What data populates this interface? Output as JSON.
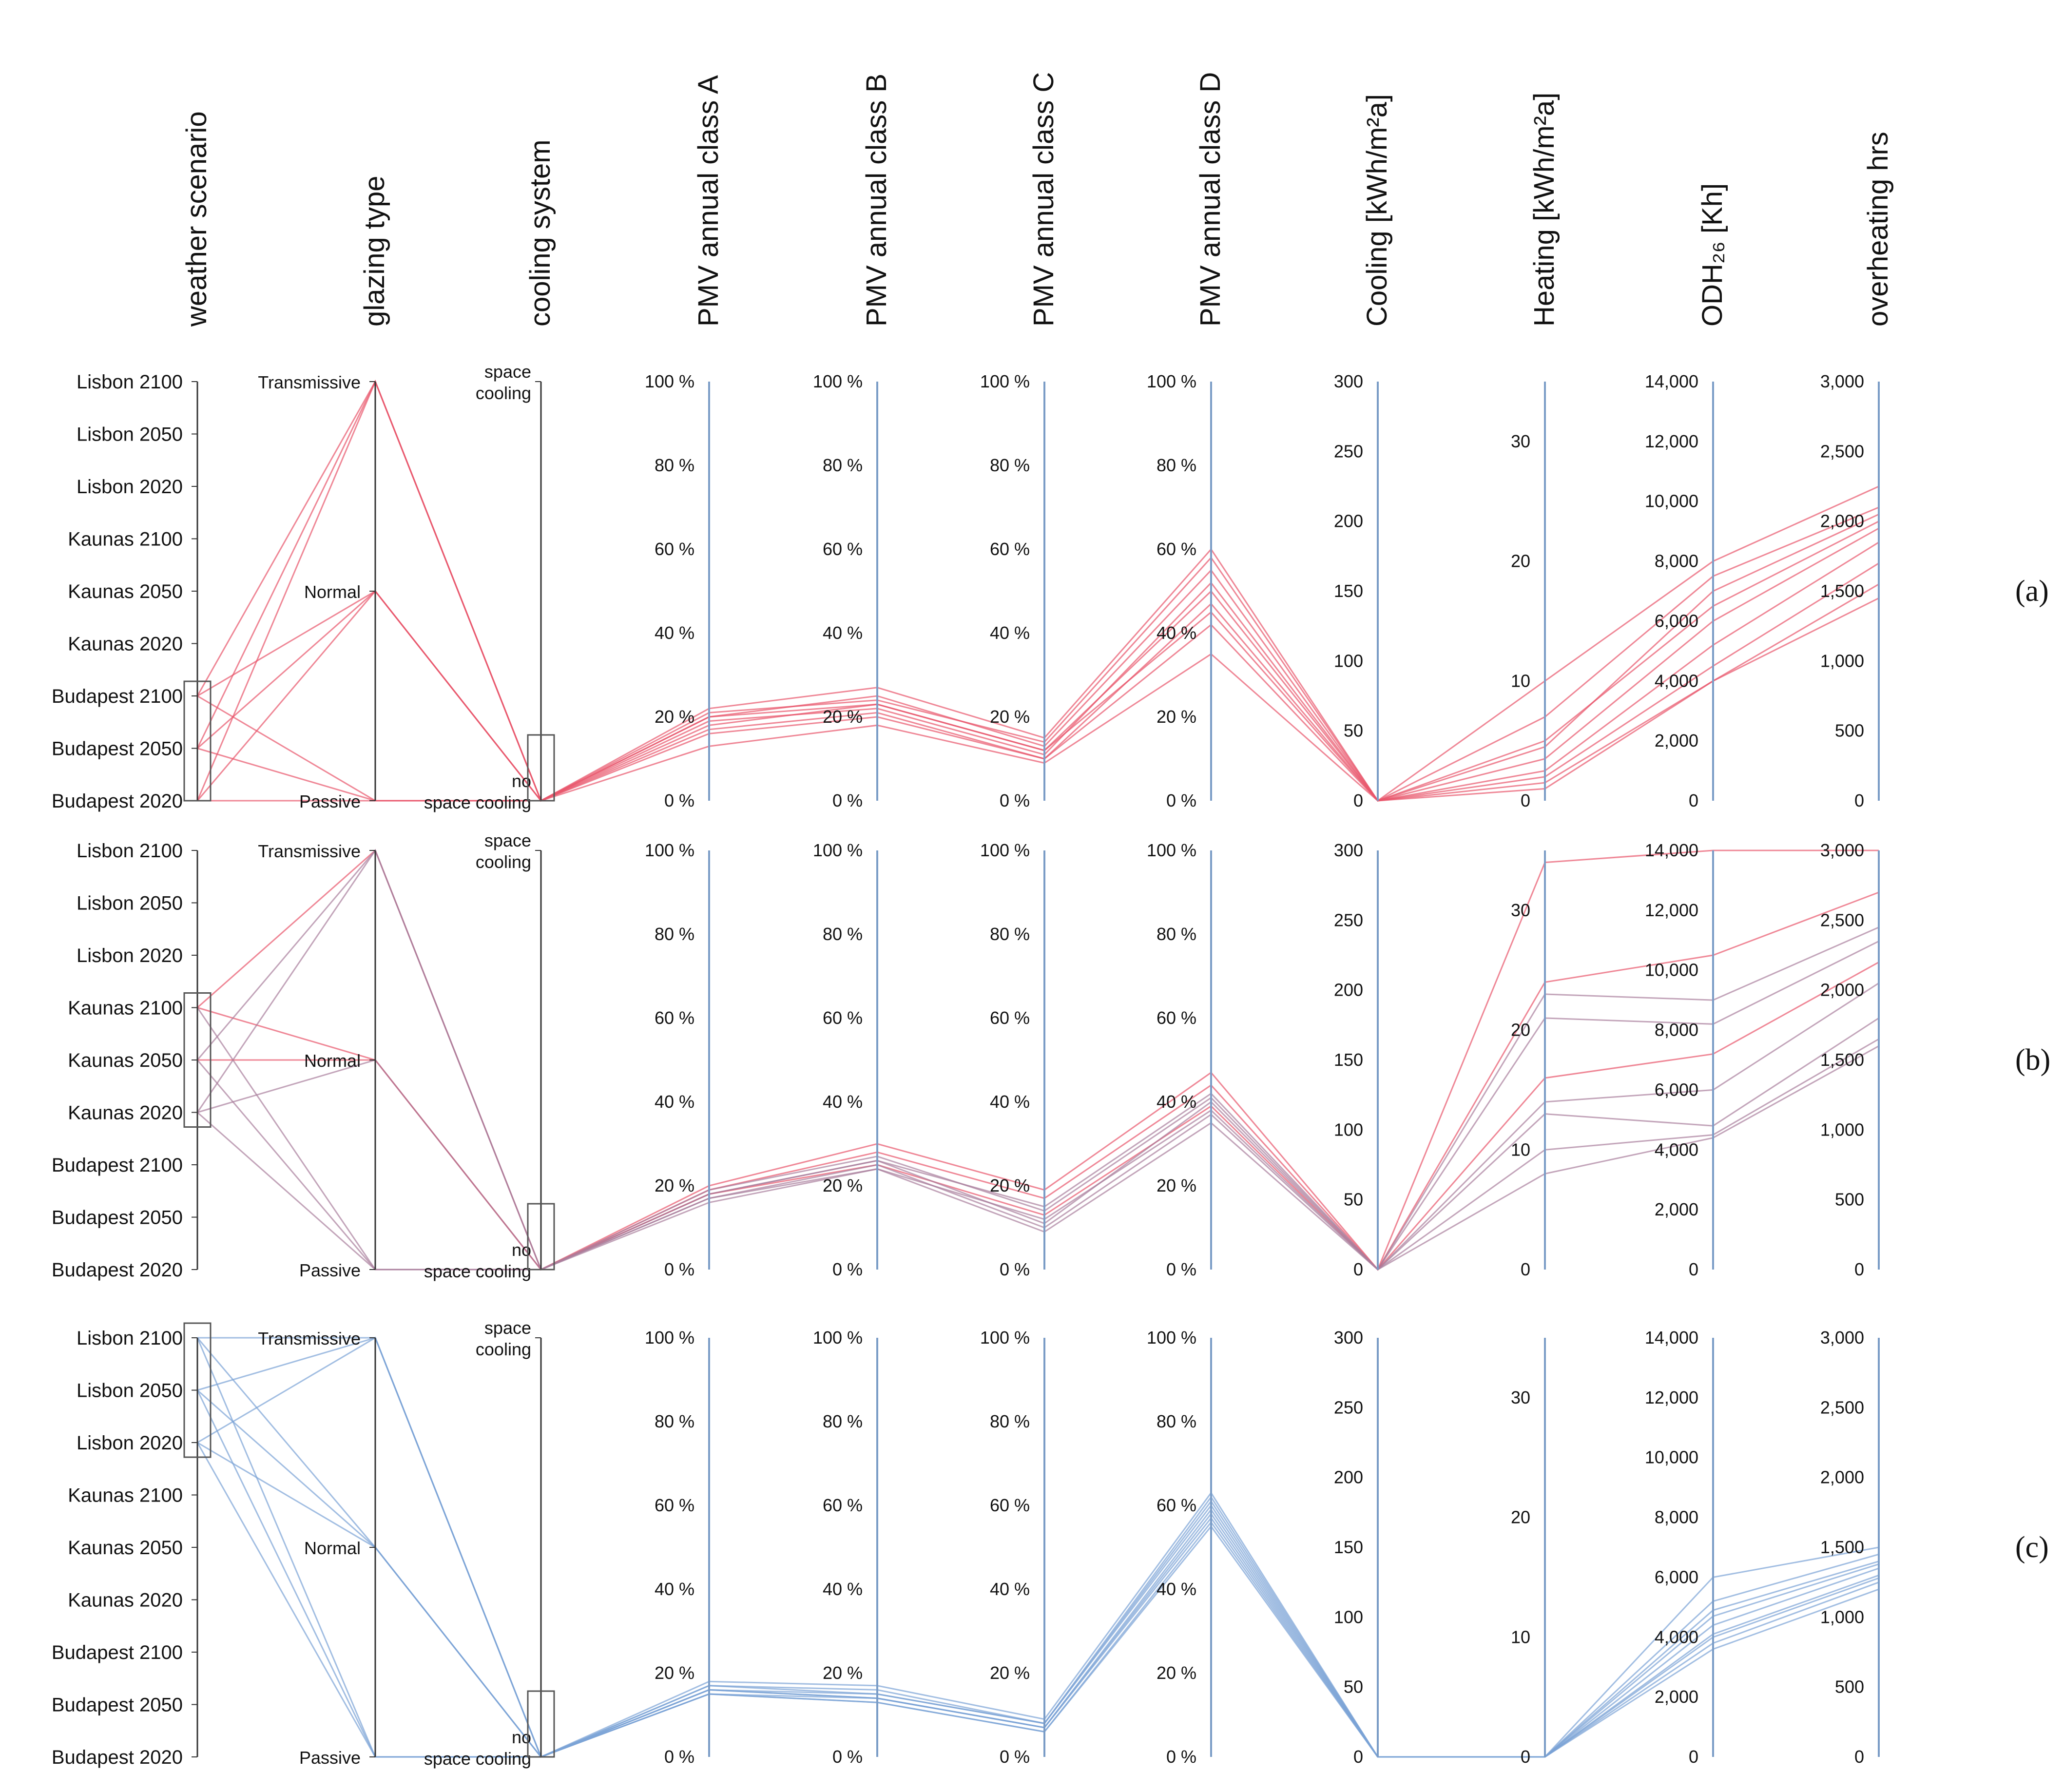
{
  "chart_data": {
    "type": "parallel-coordinates",
    "colors": {
      "warm": "#e8556b",
      "mid": "#a97f9c",
      "cool": "#7aa3d6",
      "axis": "#7a9cc6",
      "cat_axis": "#333333"
    },
    "axes": [
      {
        "key": "weather",
        "label": "weather scenario",
        "kind": "category",
        "categories": [
          "Lisbon 2100",
          "Lisbon 2050",
          "Lisbon 2020",
          "Kaunas 2100",
          "Kaunas 2050",
          "Kaunas 2020",
          "Budapest  2100",
          "Budapest  2050",
          "Budapest 2020"
        ]
      },
      {
        "key": "glazing",
        "label": "glazing type",
        "kind": "category",
        "categories": [
          "Transmissive",
          "Normal",
          "Passive"
        ]
      },
      {
        "key": "cooling_sys",
        "label": "cooling system",
        "kind": "category",
        "categories": [
          "space cooling",
          "no space cooling"
        ]
      },
      {
        "key": "pmv_a",
        "label": "PMV annual class A",
        "kind": "numeric",
        "range": [
          0,
          100
        ],
        "ticks": [
          "0 %",
          "20 %",
          "40 %",
          "60 %",
          "80 %",
          "100 %"
        ]
      },
      {
        "key": "pmv_b",
        "label": "PMV annual class B",
        "kind": "numeric",
        "range": [
          0,
          100
        ],
        "ticks": [
          "0 %",
          "20 %",
          "40 %",
          "60 %",
          "80 %",
          "100 %"
        ]
      },
      {
        "key": "pmv_c",
        "label": "PMV annual class C",
        "kind": "numeric",
        "range": [
          0,
          100
        ],
        "ticks": [
          "0 %",
          "20 %",
          "40 %",
          "60 %",
          "80 %",
          "100 %"
        ]
      },
      {
        "key": "pmv_d",
        "label": "PMV annual class D",
        "kind": "numeric",
        "range": [
          0,
          100
        ],
        "ticks": [
          "0 %",
          "20 %",
          "40 %",
          "60 %",
          "80 %",
          "100 %"
        ]
      },
      {
        "key": "cool_e",
        "label": "Cooling [kWh/m²a]",
        "kind": "numeric",
        "range": [
          0,
          300
        ],
        "ticks": [
          "0",
          "50",
          "100",
          "150",
          "200",
          "250",
          "300"
        ]
      },
      {
        "key": "heat_e",
        "label": "Heating [kWh/m²a]",
        "kind": "numeric",
        "range": [
          0,
          35
        ],
        "ticks": [
          "0",
          "10",
          "20",
          "30"
        ]
      },
      {
        "key": "odh",
        "label": "ODH₂₆ [Kh]",
        "kind": "numeric",
        "range": [
          0,
          14000
        ],
        "ticks": [
          "0",
          "2,000",
          "4,000",
          "6,000",
          "8,000",
          "10,000",
          "12,000",
          "14,000"
        ]
      },
      {
        "key": "overheat",
        "label": "overheating hrs",
        "kind": "numeric",
        "range": [
          0,
          3000
        ],
        "ticks": [
          "0",
          "500",
          "1,000",
          "1,500",
          "2,000",
          "2,500",
          "3,000"
        ]
      }
    ],
    "panels": [
      {
        "label": "(a)",
        "brush": {
          "weather": [
            6,
            8
          ],
          "cooling_sys": [
            1,
            1
          ]
        },
        "lines": [
          {
            "c": "warm",
            "v": [
              6,
              0,
              1,
              22,
              27,
              15,
              60,
              0,
              10,
              8000,
              2250
            ]
          },
          {
            "c": "warm",
            "v": [
              6,
              1,
              1,
              20,
              25,
              13,
              55,
              0,
              7,
              7500,
              2100
            ]
          },
          {
            "c": "warm",
            "v": [
              6,
              2,
              1,
              18,
              23,
              12,
              50,
              0,
              5,
              6500,
              2000
            ]
          },
          {
            "c": "warm",
            "v": [
              7,
              0,
              1,
              21,
              24,
              14,
              58,
              0,
              4.5,
              7000,
              2050
            ]
          },
          {
            "c": "warm",
            "v": [
              7,
              1,
              1,
              19,
              22,
              11,
              52,
              0,
              3.5,
              6000,
              1950
            ]
          },
          {
            "c": "warm",
            "v": [
              7,
              2,
              1,
              17,
              21,
              10,
              47,
              0,
              2.5,
              5200,
              1850
            ]
          },
          {
            "c": "warm",
            "v": [
              8,
              0,
              1,
              20,
              23,
              12,
              45,
              0,
              2,
              4500,
              1700
            ]
          },
          {
            "c": "warm",
            "v": [
              8,
              1,
              1,
              16,
              20,
              10,
              42,
              0,
              1.5,
              4000,
              1550
            ]
          },
          {
            "c": "warm",
            "v": [
              8,
              2,
              1,
              13,
              18,
              9,
              35,
              0,
              1,
              4000,
              1450
            ]
          }
        ]
      },
      {
        "label": "(b)",
        "brush": {
          "weather": [
            3,
            5
          ],
          "cooling_sys": [
            1,
            1
          ]
        },
        "lines": [
          {
            "c": "warm",
            "v": [
              3,
              0,
              1,
              20,
              30,
              19,
              47,
              0,
              34,
              14000,
              3000
            ]
          },
          {
            "c": "warm",
            "v": [
              3,
              1,
              1,
              19,
              28,
              17,
              44,
              0,
              24,
              10500,
              2700
            ]
          },
          {
            "c": "mid",
            "v": [
              3,
              2,
              1,
              18,
              26,
              15,
              42,
              0,
              23,
              9000,
              2450
            ]
          },
          {
            "c": "mid",
            "v": [
              4,
              0,
              1,
              19,
              27,
              14,
              41,
              0,
              21,
              8200,
              2350
            ]
          },
          {
            "c": "warm",
            "v": [
              4,
              1,
              1,
              18,
              25,
              13,
              39,
              0,
              16,
              7200,
              2200
            ]
          },
          {
            "c": "mid",
            "v": [
              4,
              2,
              1,
              17,
              24,
              12,
              38,
              0,
              14,
              6000,
              2050
            ]
          },
          {
            "c": "mid",
            "v": [
              5,
              0,
              1,
              18,
              26,
              11,
              40,
              0,
              13,
              4800,
              1800
            ]
          },
          {
            "c": "mid",
            "v": [
              5,
              1,
              1,
              17,
              25,
              10,
              37,
              0,
              10,
              4500,
              1650
            ]
          },
          {
            "c": "mid",
            "v": [
              5,
              2,
              1,
              16,
              24,
              9,
              35,
              0,
              8,
              4400,
              1600
            ]
          }
        ]
      },
      {
        "label": "(c)",
        "brush": {
          "weather": [
            0,
            2
          ],
          "cooling_sys": [
            1,
            1
          ]
        },
        "lines": [
          {
            "c": "cool",
            "v": [
              0,
              0,
              1,
              18,
              17,
              9,
              63,
              0,
              0,
              6000,
              1500
            ]
          },
          {
            "c": "cool",
            "v": [
              0,
              1,
              1,
              17,
              16,
              8,
              62,
              0,
              0,
              5200,
              1450
            ]
          },
          {
            "c": "cool",
            "v": [
              0,
              2,
              1,
              16,
              15,
              8,
              60,
              0,
              0,
              4900,
              1400
            ]
          },
          {
            "c": "cool",
            "v": [
              1,
              0,
              1,
              17,
              15,
              8,
              61,
              0,
              0,
              4700,
              1380
            ]
          },
          {
            "c": "cool",
            "v": [
              1,
              1,
              1,
              16,
              14,
              7,
              59,
              0,
              0,
              4400,
              1350
            ]
          },
          {
            "c": "cool",
            "v": [
              1,
              2,
              1,
              15,
              14,
              7,
              58,
              0,
              0,
              4100,
              1300
            ]
          },
          {
            "c": "cool",
            "v": [
              2,
              0,
              1,
              16,
              14,
              7,
              57,
              0,
              0,
              4000,
              1280
            ]
          },
          {
            "c": "cool",
            "v": [
              2,
              1,
              1,
              15,
              13,
              6,
              56,
              0,
              0,
              3800,
              1250
            ]
          },
          {
            "c": "cool",
            "v": [
              2,
              2,
              1,
              15,
              13,
              6,
              55,
              0,
              0,
              3600,
              1200
            ]
          }
        ]
      }
    ]
  }
}
